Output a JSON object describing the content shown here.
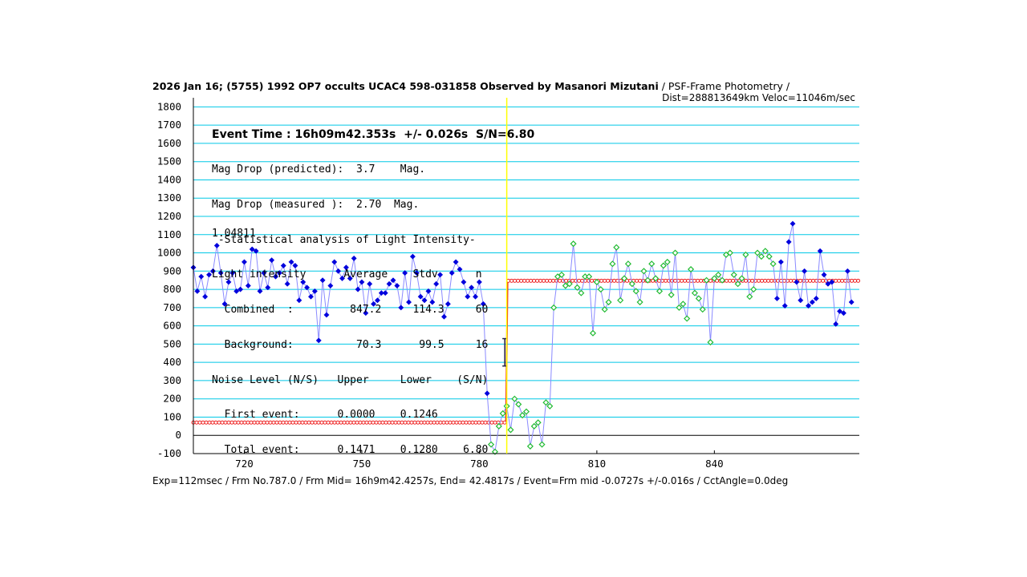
{
  "header": {
    "title": "2026 Jan 16; (5755) 1992 OP7 occults UCAC4 598-031858 Observed by Masanori Mizutani",
    "method": " / PSF-Frame Photometry /",
    "distance": "Dist=288813649km Veloc=11046m/sec"
  },
  "info": {
    "event_time": "Event Time : 16h09m42.353s  +/- 0.026s  S/N=6.80",
    "lines": [
      "Mag Drop (predicted):  3.7    Mag.",
      "Mag Drop (measured ):  2.70  Mag.",
      " -Statistical analysis of Light Intensity-",
      "Light intensity      Average    Stdv      n",
      "  Combined  :         847.2     114.3     60",
      "  Background:          70.3      99.5     16",
      "Noise Level (N/S)   Upper     Lower    (S/N)",
      "  First event:      0.0000    0.1246",
      "  Total event:      0.1471    0.1280    6.80"
    ],
    "annotation": "1.04811"
  },
  "footer": "Exp=112msec / Frm No.787.0 / Frm Mid= 16h9m42.4257s,  End= 42.4817s / Event=Frm mid -0.0727s +/-0.016s / CctAngle=0.0deg",
  "colors": {
    "grid": "#00c8e6",
    "series_line": "#8a8aff",
    "pre_event_marker": "#0000dd",
    "in_event_marker": "#22bb33",
    "fit": "#ee2222",
    "event_marker": "#ffff00"
  },
  "chart_data": {
    "type": "line",
    "xlim": [
      707,
      877
    ],
    "ylim": [
      -100,
      1850
    ],
    "x_ticks": [
      720,
      750,
      780,
      810,
      840
    ],
    "y_ticks": [
      1800,
      1700,
      1600,
      1500,
      1400,
      1300,
      1200,
      1100,
      1000,
      900,
      800,
      700,
      600,
      500,
      400,
      300,
      200,
      100,
      0,
      -100
    ],
    "x_start": 707,
    "x_step": 1,
    "values": [
      920,
      790,
      870,
      760,
      880,
      900,
      1040,
      890,
      720,
      840,
      890,
      790,
      800,
      950,
      820,
      1020,
      1010,
      790,
      890,
      810,
      960,
      870,
      890,
      930,
      830,
      950,
      930,
      740,
      840,
      810,
      760,
      790,
      520,
      850,
      660,
      820,
      950,
      900,
      860,
      920,
      860,
      970,
      800,
      840,
      670,
      830,
      720,
      740,
      780,
      780,
      830,
      850,
      820,
      700,
      890,
      730,
      980,
      890,
      760,
      740,
      790,
      730,
      830,
      880,
      650,
      720,
      890,
      950,
      910,
      840,
      760,
      810,
      760,
      840,
      720,
      230,
      -50,
      -90,
      50,
      120,
      160,
      30,
      200,
      170,
      110,
      130,
      -60,
      50,
      70,
      -50,
      180,
      160,
      700,
      870,
      880,
      820,
      830,
      1050,
      810,
      780,
      870,
      870,
      560,
      840,
      800,
      690,
      730,
      940,
      1030,
      740,
      860,
      940,
      830,
      790,
      730,
      900,
      850,
      940,
      860,
      790,
      930,
      950,
      770,
      1000,
      700,
      720,
      640,
      910,
      780,
      750,
      690,
      850,
      510,
      860,
      880,
      850,
      990,
      1000,
      880,
      830,
      860,
      990,
      760,
      800,
      1000,
      980,
      1010,
      980,
      940,
      750,
      950,
      710,
      1060,
      1160,
      840,
      740,
      900,
      710,
      730,
      750,
      1010,
      880,
      830,
      840,
      610,
      680,
      670,
      900,
      730
    ],
    "in_event_range": [
      76,
      91
    ],
    "green_after_event": [
      92,
      148
    ],
    "fit": {
      "baseline": 847.2,
      "bottom": 70.3,
      "event_x": 787.0
    },
    "event_error_bar": {
      "x": 786.5,
      "y": 460,
      "low": 380,
      "high": 530
    }
  }
}
